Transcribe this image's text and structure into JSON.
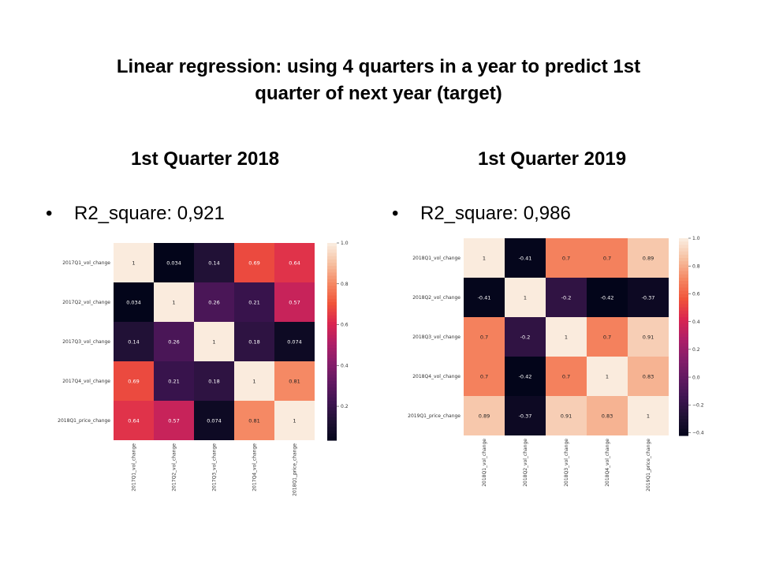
{
  "slide": {
    "title_line1": "Linear regression: using 4 quarters in a year to predict 1st",
    "title_line2": "quarter of next year (target)"
  },
  "left": {
    "heading": "1st Quarter 2018",
    "r2_text": "R2_square: 0,921"
  },
  "right": {
    "heading": "1st Quarter 2019",
    "r2_text": "R2_square: 0,986"
  },
  "bullet_symbol": "•",
  "chart_data": [
    {
      "type": "heatmap",
      "title": "",
      "row_labels": [
        "2017Q1_vol_change",
        "2017Q2_vol_change",
        "2017Q3_vol_change",
        "2017Q4_vol_change",
        "2018Q1_price_change"
      ],
      "col_labels": [
        "2017Q1_vol_change",
        "2017Q2_vol_change",
        "2017Q3_vol_change",
        "2017Q4_vol_change",
        "2018Q1_price_change"
      ],
      "values": [
        [
          1,
          0.034,
          0.14,
          0.69,
          0.64
        ],
        [
          0.034,
          1,
          0.26,
          0.21,
          0.57
        ],
        [
          0.14,
          0.26,
          1,
          0.18,
          0.074
        ],
        [
          0.69,
          0.21,
          0.18,
          1,
          0.81
        ],
        [
          0.64,
          0.57,
          0.074,
          0.81,
          1
        ]
      ],
      "cell_labels": [
        [
          "1",
          "0.034",
          "0.14",
          "0.69",
          "0.64"
        ],
        [
          "0.034",
          "1",
          "0.26",
          "0.21",
          "0.57"
        ],
        [
          "0.14",
          "0.26",
          "1",
          "0.18",
          "0.074"
        ],
        [
          "0.69",
          "0.21",
          "0.18",
          "1",
          "0.81"
        ],
        [
          "0.64",
          "0.57",
          "0.074",
          "0.81",
          "1"
        ]
      ],
      "colorbar": {
        "vmin": 0.034,
        "vmax": 1.0,
        "ticks": [
          0.2,
          0.4,
          0.6,
          0.8,
          1.0
        ],
        "tick_labels": [
          "0.2",
          "0.4",
          "0.6",
          "0.8",
          "1.0"
        ]
      },
      "colormap": "rocket"
    },
    {
      "type": "heatmap",
      "title": "",
      "row_labels": [
        "2018Q1_vol_change",
        "2018Q2_vol_change",
        "2018Q3_vol_change",
        "2018Q4_vol_change",
        "2019Q1_price_change"
      ],
      "col_labels": [
        "2018Q1_vol_change",
        "2018Q2_vol_change",
        "2018Q3_vol_change",
        "2018Q4_vol_change",
        "2019Q1_price_change"
      ],
      "values": [
        [
          1,
          -0.41,
          0.7,
          0.7,
          0.89
        ],
        [
          -0.41,
          1,
          -0.2,
          -0.42,
          -0.37
        ],
        [
          0.7,
          -0.2,
          1,
          0.7,
          0.91
        ],
        [
          0.7,
          -0.42,
          0.7,
          1,
          0.83
        ],
        [
          0.89,
          -0.37,
          0.91,
          0.83,
          1
        ]
      ],
      "cell_labels": [
        [
          "1",
          "-0.41",
          "0.7",
          "0.7",
          "0.89"
        ],
        [
          "-0.41",
          "1",
          "-0.2",
          "-0.42",
          "-0.37"
        ],
        [
          "0.7",
          "-0.2",
          "1",
          "0.7",
          "0.91"
        ],
        [
          "0.7",
          "-0.42",
          "0.7",
          "1",
          "0.83"
        ],
        [
          "0.89",
          "-0.37",
          "0.91",
          "0.83",
          "1"
        ]
      ],
      "colorbar": {
        "vmin": -0.42,
        "vmax": 1.0,
        "ticks": [
          -0.4,
          -0.2,
          0.0,
          0.2,
          0.4,
          0.6,
          0.8,
          1.0
        ],
        "tick_labels": [
          "−0.4",
          "−0.2",
          "0.0",
          "0.2",
          "0.4",
          "0.6",
          "0.8",
          "1.0"
        ]
      },
      "colormap": "rocket"
    }
  ]
}
